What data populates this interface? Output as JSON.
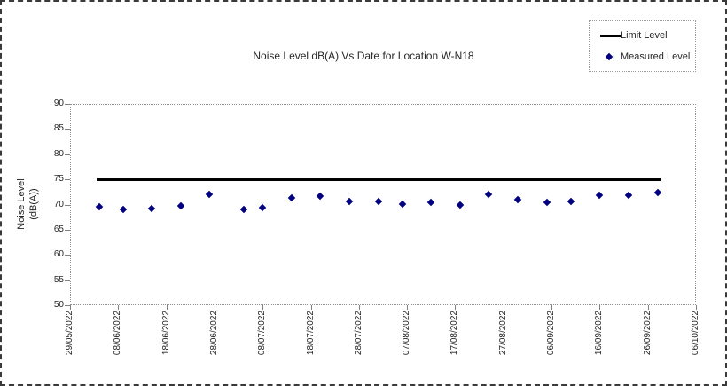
{
  "title": "Noise Level dB(A) Vs Date for Location W-N18",
  "colors": {
    "measured": "#000080",
    "limit": "#000000",
    "background": "#ffffff"
  },
  "legend": {
    "items": [
      {
        "label": "Limit Level",
        "marker": "line-icon",
        "color": "#000000"
      },
      {
        "label": "Measured Level",
        "marker": "diamond-icon",
        "color": "#000080"
      }
    ]
  },
  "y_axis": {
    "title": "Noise Level (dB(A))",
    "title_lines": [
      "Noise Level",
      "(dB(A))"
    ],
    "tick_labels": [
      "90",
      "85",
      "80",
      "75",
      "70",
      "65",
      "60",
      "55",
      "50"
    ]
  },
  "x_axis": {
    "tick_labels": [
      "29/05/2022",
      "08/06/2022",
      "18/06/2022",
      "28/06/2022",
      "08/07/2022",
      "18/07/2022",
      "28/07/2022",
      "07/08/2022",
      "17/08/2022",
      "27/08/2022",
      "06/09/2022",
      "16/09/2022",
      "26/09/2022",
      "06/10/2022"
    ]
  },
  "chart_data": {
    "type": "scatter",
    "title": "Noise Level dB(A) Vs Date for Location W-N18",
    "xlabel": "",
    "ylabel": "Noise Level (dB(A))",
    "ylim": [
      50,
      90
    ],
    "x_range": [
      "29/05/2022",
      "06/10/2022"
    ],
    "grid": false,
    "legend_position": "top-right",
    "series": [
      {
        "name": "Limit Level",
        "type": "line",
        "color": "#000000",
        "y": 75,
        "x_start": "04/06/2022",
        "x_end": "28/09/2022"
      },
      {
        "name": "Measured Level",
        "type": "scatter",
        "color": "#000080",
        "points": [
          {
            "date": "04/06/2022",
            "value": 69.5
          },
          {
            "date": "09/06/2022",
            "value": 69.1
          },
          {
            "date": "15/06/2022",
            "value": 69.2
          },
          {
            "date": "21/06/2022",
            "value": 69.7
          },
          {
            "date": "27/06/2022",
            "value": 72.1
          },
          {
            "date": "04/07/2022",
            "value": 69.1
          },
          {
            "date": "08/07/2022",
            "value": 69.3
          },
          {
            "date": "14/07/2022",
            "value": 71.4
          },
          {
            "date": "20/07/2022",
            "value": 71.7
          },
          {
            "date": "26/07/2022",
            "value": 70.6
          },
          {
            "date": "01/08/2022",
            "value": 70.7
          },
          {
            "date": "06/08/2022",
            "value": 70.1
          },
          {
            "date": "12/08/2022",
            "value": 70.4
          },
          {
            "date": "18/08/2022",
            "value": 69.9
          },
          {
            "date": "24/08/2022",
            "value": 72.0
          },
          {
            "date": "30/08/2022",
            "value": 70.9
          },
          {
            "date": "05/09/2022",
            "value": 70.4
          },
          {
            "date": "10/09/2022",
            "value": 70.7
          },
          {
            "date": "16/09/2022",
            "value": 71.8
          },
          {
            "date": "22/09/2022",
            "value": 71.9
          },
          {
            "date": "28/09/2022",
            "value": 72.4
          }
        ]
      }
    ]
  }
}
